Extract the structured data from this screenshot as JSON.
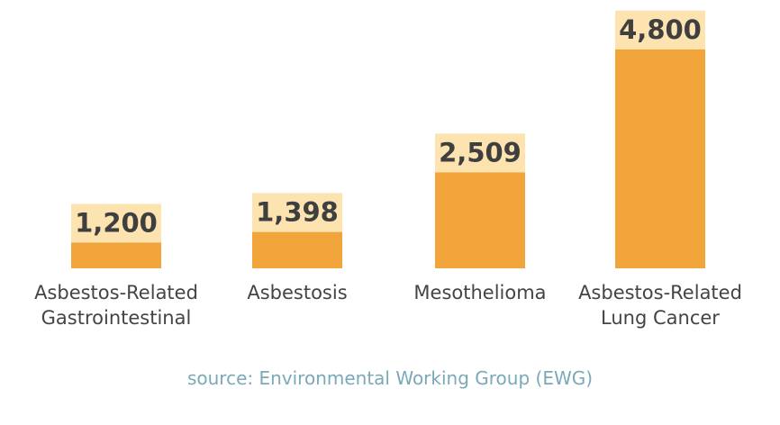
{
  "chart_data": {
    "type": "bar",
    "categories": [
      [
        "Asbestos-Related",
        "Gastrointestinal"
      ],
      [
        "Asbestosis"
      ],
      [
        "Mesothelioma"
      ],
      [
        "Asbestos-Related",
        "Lung Cancer"
      ]
    ],
    "values": [
      1200,
      1398,
      2509,
      4800
    ],
    "value_labels": [
      "1,200",
      "1,398",
      "2,509",
      "4,800"
    ],
    "title": "",
    "xlabel": "",
    "ylabel": "",
    "ylim": [
      0,
      5000
    ],
    "grid": false,
    "colors": {
      "bar": "#f0a43a",
      "label_band": "#fde3b0",
      "label_text": "#3f3f3f",
      "category_text": "#444444"
    }
  },
  "footer": {
    "source": "source: Environmental Working Group (EWG)",
    "color": "#7aa9b7"
  }
}
